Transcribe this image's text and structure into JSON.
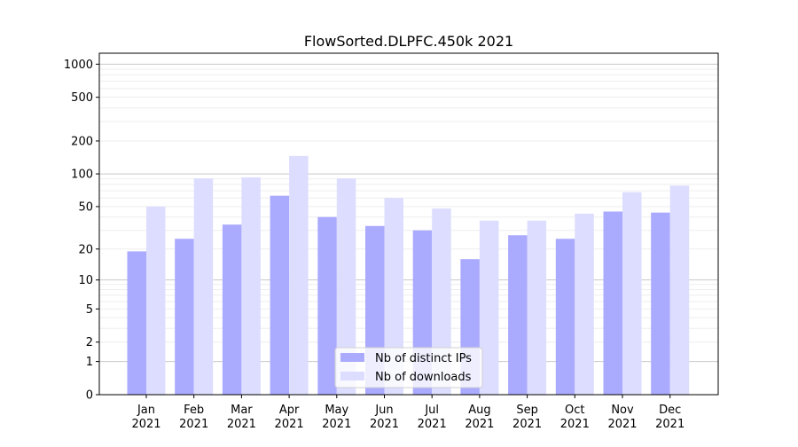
{
  "chart_data": {
    "type": "bar",
    "title": "FlowSorted.DLPFC.450k 2021",
    "xlabel": "",
    "ylabel": "",
    "yscale": "log10(y+1)",
    "ylim": [
      0,
      1200
    ],
    "grid": true,
    "legend_position": "bottom-center",
    "categories": [
      "Jan\n2021",
      "Feb\n2021",
      "Mar\n2021",
      "Apr\n2021",
      "May\n2021",
      "Jun\n2021",
      "Jul\n2021",
      "Aug\n2021",
      "Sep\n2021",
      "Oct\n2021",
      "Nov\n2021",
      "Dec\n2021"
    ],
    "yticks": [
      0,
      1,
      2,
      5,
      10,
      20,
      50,
      100,
      200,
      500,
      1000
    ],
    "series": [
      {
        "name": "Nb of distinct IPs",
        "color": "#aaaaff",
        "values": [
          19,
          25,
          34,
          63,
          40,
          33,
          30,
          16,
          27,
          25,
          45,
          44
        ]
      },
      {
        "name": "Nb of downloads",
        "color": "#ddddff",
        "values": [
          50,
          91,
          93,
          146,
          91,
          60,
          48,
          37,
          37,
          43,
          68,
          78
        ]
      }
    ]
  }
}
